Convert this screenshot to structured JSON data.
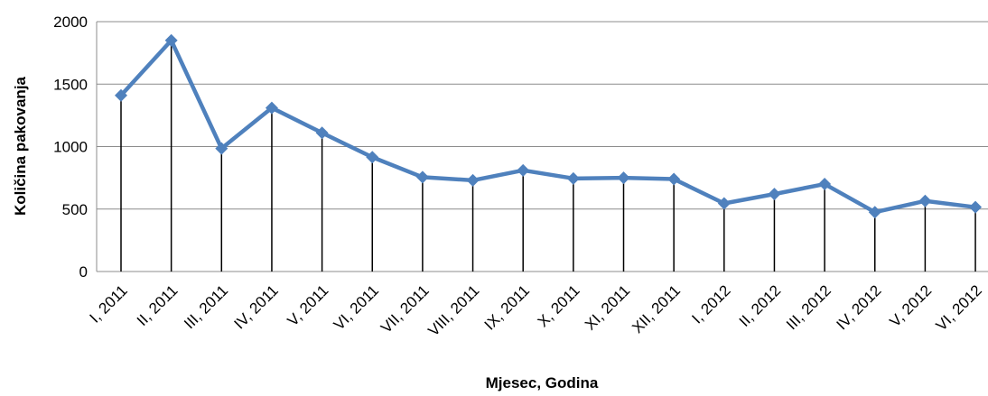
{
  "chart_data": {
    "type": "line",
    "x_label": "Mjesec, Godina",
    "y_label": "Količina pakovanja",
    "categories": [
      "I, 2011",
      "II, 2011",
      "III, 2011",
      "IV, 2011",
      "V, 2011",
      "VI, 2011",
      "VII, 2011",
      "VIII, 2011",
      "IX, 2011",
      "X, 2011",
      "XI, 2011",
      "XII, 2011",
      "I, 2012",
      "II, 2012",
      "III, 2012",
      "IV, 2012",
      "V, 2012",
      "VI, 2012"
    ],
    "series": [
      {
        "color": "#4f81bd",
        "values": [
          1410,
          1850,
          985,
          1310,
          1110,
          915,
          755,
          730,
          810,
          745,
          750,
          740,
          545,
          620,
          700,
          475,
          565,
          515
        ]
      }
    ],
    "ylim": [
      0,
      2000
    ],
    "yticks": [
      0,
      500,
      1000,
      1500,
      2000
    ],
    "grid": true,
    "drop_lines": true
  }
}
